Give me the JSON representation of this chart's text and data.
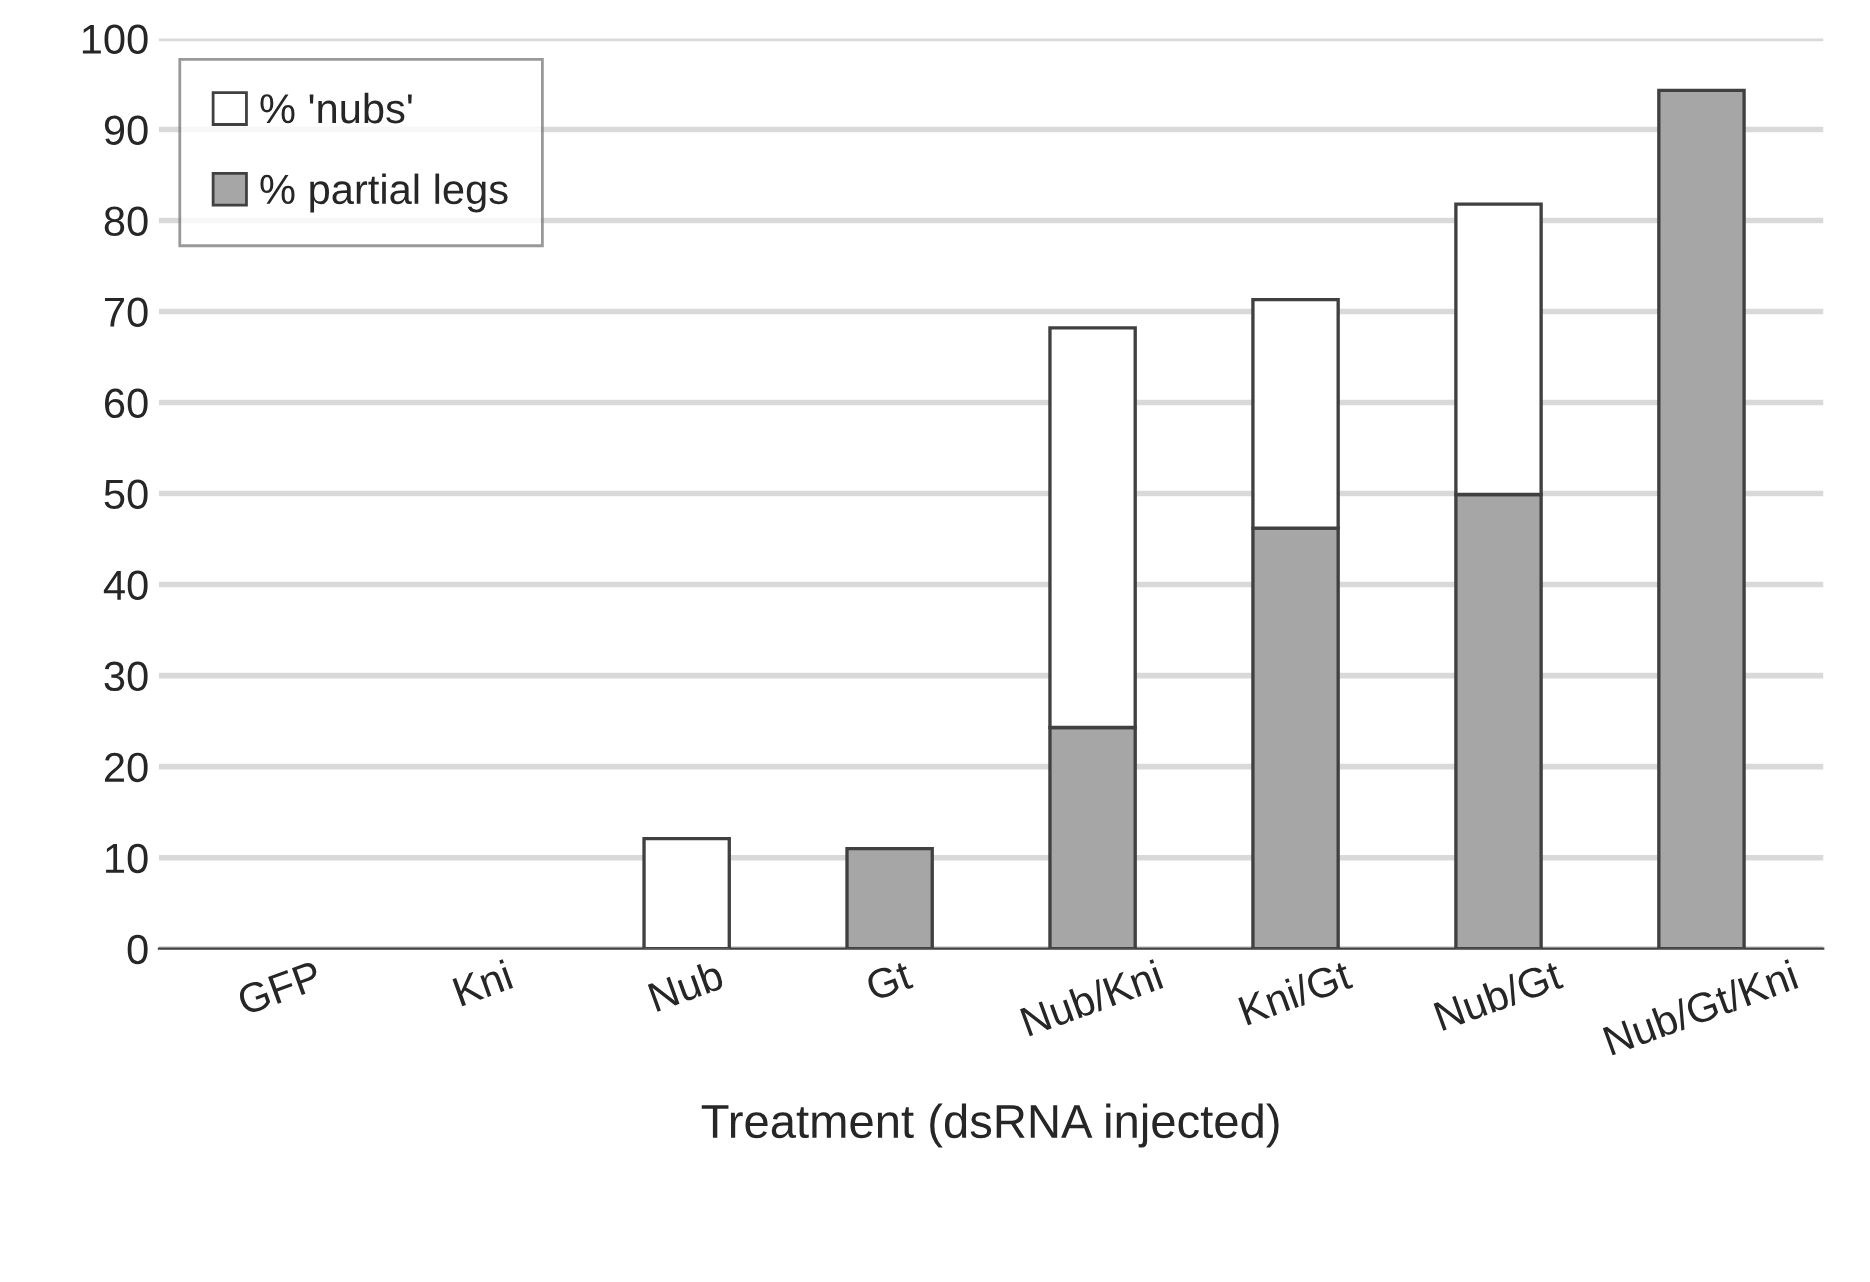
{
  "chart_data": {
    "type": "bar",
    "stacked": true,
    "xlabel": "Treatment (dsRNA injected)",
    "categories": [
      "GFP",
      "Kni",
      "Nub",
      "Gt",
      "Nub/Kni",
      "Kni/Gt",
      "Nub/Gt",
      "Nub/Gt/Kni"
    ],
    "series": [
      {
        "name": "% partial legs",
        "color": "#a6a6a6",
        "values": [
          null,
          null,
          null,
          11.0,
          24.3,
          46.2,
          49.9,
          94.3
        ]
      },
      {
        "name": "% 'nubs'",
        "color": "#ffffff",
        "values": [
          null,
          null,
          12.1,
          null,
          43.9,
          25.1,
          31.9,
          null
        ]
      }
    ],
    "ylim": [
      0,
      100
    ],
    "yticks": [
      0,
      10,
      20,
      30,
      40,
      50,
      60,
      70,
      80,
      90,
      100
    ],
    "grid": "y",
    "legend": "top left"
  }
}
